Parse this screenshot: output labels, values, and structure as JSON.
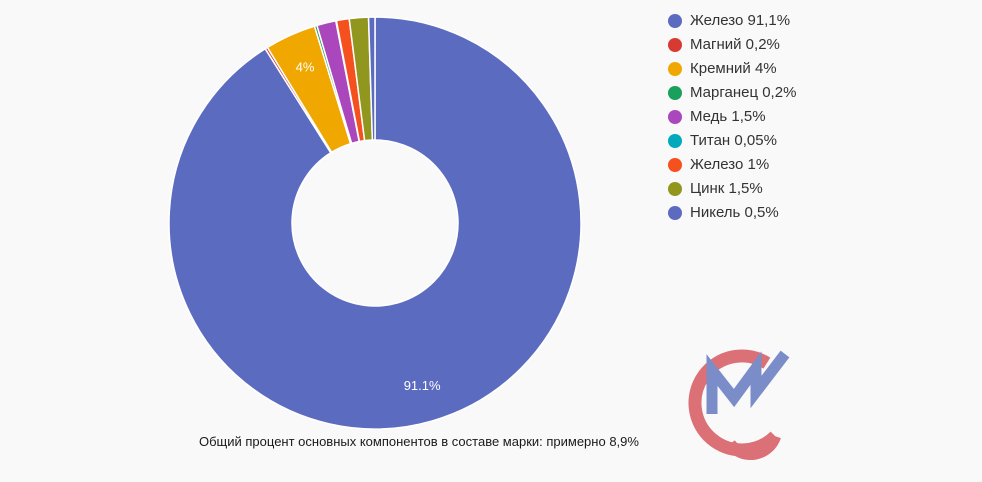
{
  "chart_data": {
    "type": "pie",
    "subtype": "donut",
    "title": "",
    "legend_position": "right",
    "start_angle_deg": -90,
    "direction": "clockwise",
    "slices": [
      {
        "name": "Железо",
        "legend_label": "Железо 91,1%",
        "value": 91.1,
        "color": "#5b6bc0",
        "slice_label": "91.1%"
      },
      {
        "name": "Магний",
        "legend_label": "Магний 0,2%",
        "value": 0.2,
        "color": "#d63a32",
        "slice_label": ""
      },
      {
        "name": "Кремний",
        "legend_label": "Кремний 4%",
        "value": 4,
        "color": "#f0a800",
        "slice_label": "4%"
      },
      {
        "name": "Марганец",
        "legend_label": "Марганец 0,2%",
        "value": 0.2,
        "color": "#18a05c",
        "slice_label": ""
      },
      {
        "name": "Медь",
        "legend_label": "Медь 1,5%",
        "value": 1.5,
        "color": "#ab47bc",
        "slice_label": ""
      },
      {
        "name": "Титан",
        "legend_label": "Титан 0,05%",
        "value": 0.05,
        "color": "#00a9bc",
        "slice_label": ""
      },
      {
        "name": "Железо",
        "legend_label": "Железо 1%",
        "value": 1,
        "color": "#f4511e",
        "slice_label": ""
      },
      {
        "name": "Цинк",
        "legend_label": "Цинк 1,5%",
        "value": 1.5,
        "color": "#91961f",
        "slice_label": ""
      },
      {
        "name": "Никель",
        "legend_label": "Никель 0,5%",
        "value": 0.5,
        "color": "#5c6bc0",
        "slice_label": ""
      }
    ],
    "caption": "Общий процент основных компонентов в составе марки: примерно 8,9%"
  },
  "logo": {
    "name": "CM-watermark",
    "red_color": "#db7077",
    "blue_color": "#7b8dc9"
  }
}
